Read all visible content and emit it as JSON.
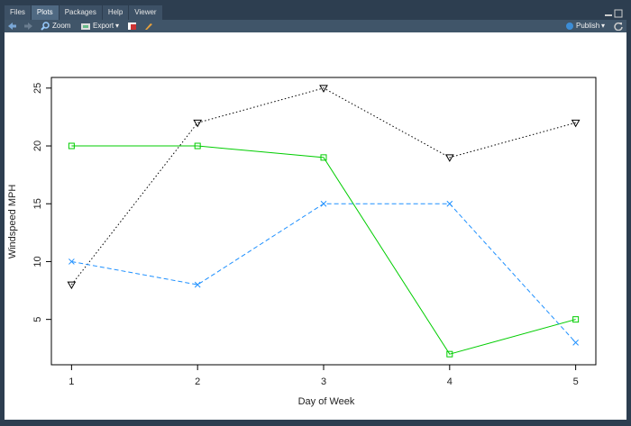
{
  "tabs": [
    "Files",
    "Plots",
    "Packages",
    "Help",
    "Viewer"
  ],
  "toolbar": {
    "zoom": "Zoom",
    "export": "Export",
    "publish": "Publish"
  },
  "chart_data": {
    "type": "line",
    "x": [
      1,
      2,
      3,
      4,
      5
    ],
    "series": [
      {
        "color": "#000000",
        "linestyle": "dotted",
        "marker": "triangle-down",
        "values": [
          8,
          22,
          25,
          19,
          22
        ]
      },
      {
        "color": "#00cd00",
        "linestyle": "solid",
        "marker": "square",
        "values": [
          20,
          20,
          19,
          2,
          5
        ]
      },
      {
        "color": "#1e90ff",
        "linestyle": "dashed",
        "marker": "x",
        "values": [
          10,
          8,
          15,
          15,
          3
        ]
      }
    ],
    "xlabel": "Day of Week",
    "ylabel": "Windspeed MPH",
    "xlim": [
      0.84,
      5.16
    ],
    "ylim": [
      1.08,
      25.92
    ],
    "xticks": [
      1,
      2,
      3,
      4,
      5
    ],
    "yticks": [
      5,
      10,
      15,
      20,
      25
    ]
  }
}
